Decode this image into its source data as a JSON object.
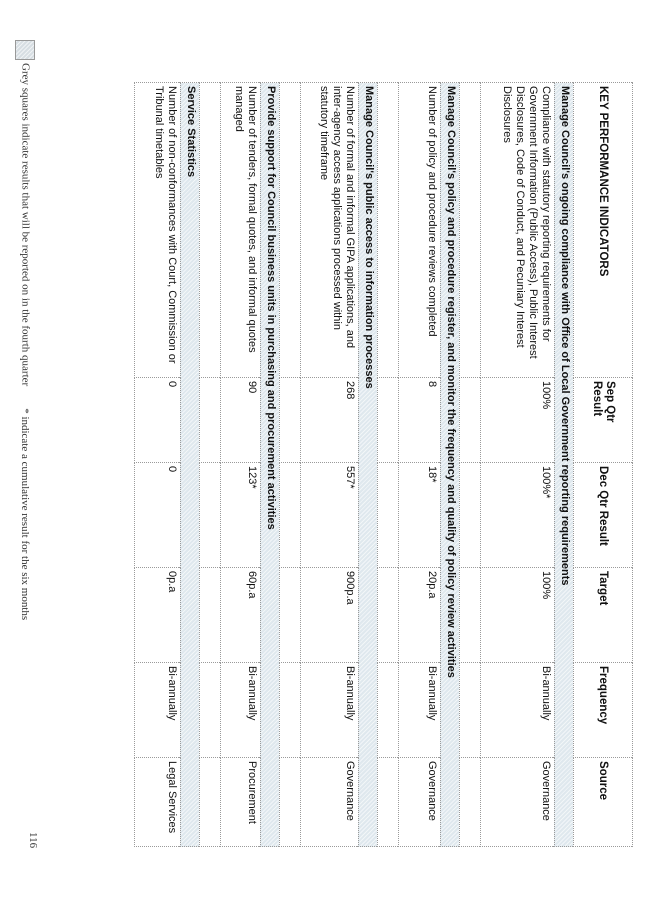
{
  "headers": {
    "kpi": "KEY PERFORMANCE INDICATORS",
    "sep": "Sep Qtr Result",
    "dec": "Dec Qtr Result",
    "target": "Target",
    "frequency": "Frequency",
    "source": "Source"
  },
  "sections": [
    {
      "title": "Manage Council's ongoing compliance with Office of Local Government reporting requirements",
      "row": {
        "kpi": "Compliance with statutory reporting requirements for Government Information (Public Access), Public Interest Disclosures, Code of Conduct, and Pecuniary Interest Disclosures",
        "sep": "100%",
        "dec": "100%*",
        "target": "100%",
        "frequency": "Bi-annually",
        "source": "Governance"
      }
    },
    {
      "title": "Manage Council's policy and procedure register, and monitor the frequency and quality of policy review activities",
      "row": {
        "kpi": "Number of policy and procedure reviews completed",
        "sep": "8",
        "dec": "18*",
        "target": "20p.a",
        "frequency": "Bi-annually",
        "source": "Governance"
      }
    },
    {
      "title": "Manage Council's public access to information processes",
      "row": {
        "kpi": "Number of formal and informal GIPA applications, and inter-agency access applications processed within statutory timeframe",
        "sep": "268",
        "dec": "557*",
        "target": "900p.a",
        "frequency": "Bi-annually",
        "source": "Governance"
      }
    },
    {
      "title": "Provide support for Council business units in purchasing and procurement activities",
      "row": {
        "kpi": "Number of tenders, formal quotes, and informal quotes managed",
        "sep": "90",
        "dec": "123*",
        "target": "60p.a",
        "frequency": "Bi-annually",
        "source": "Procurement"
      }
    },
    {
      "title": "Service Statistics",
      "row": {
        "kpi": "Number of non-conformances with Court, Commission or Tribunal timetables",
        "sep": "0",
        "dec": "0",
        "target": "0p.a",
        "frequency": "Bi-annually",
        "source": "Legal Services"
      }
    }
  ],
  "footnote": {
    "grey": "Grey squares indicate results that will be reported on in the fourth quarter",
    "cumulative": "* indicate a cumulative result for the six months"
  },
  "page_number": "116"
}
